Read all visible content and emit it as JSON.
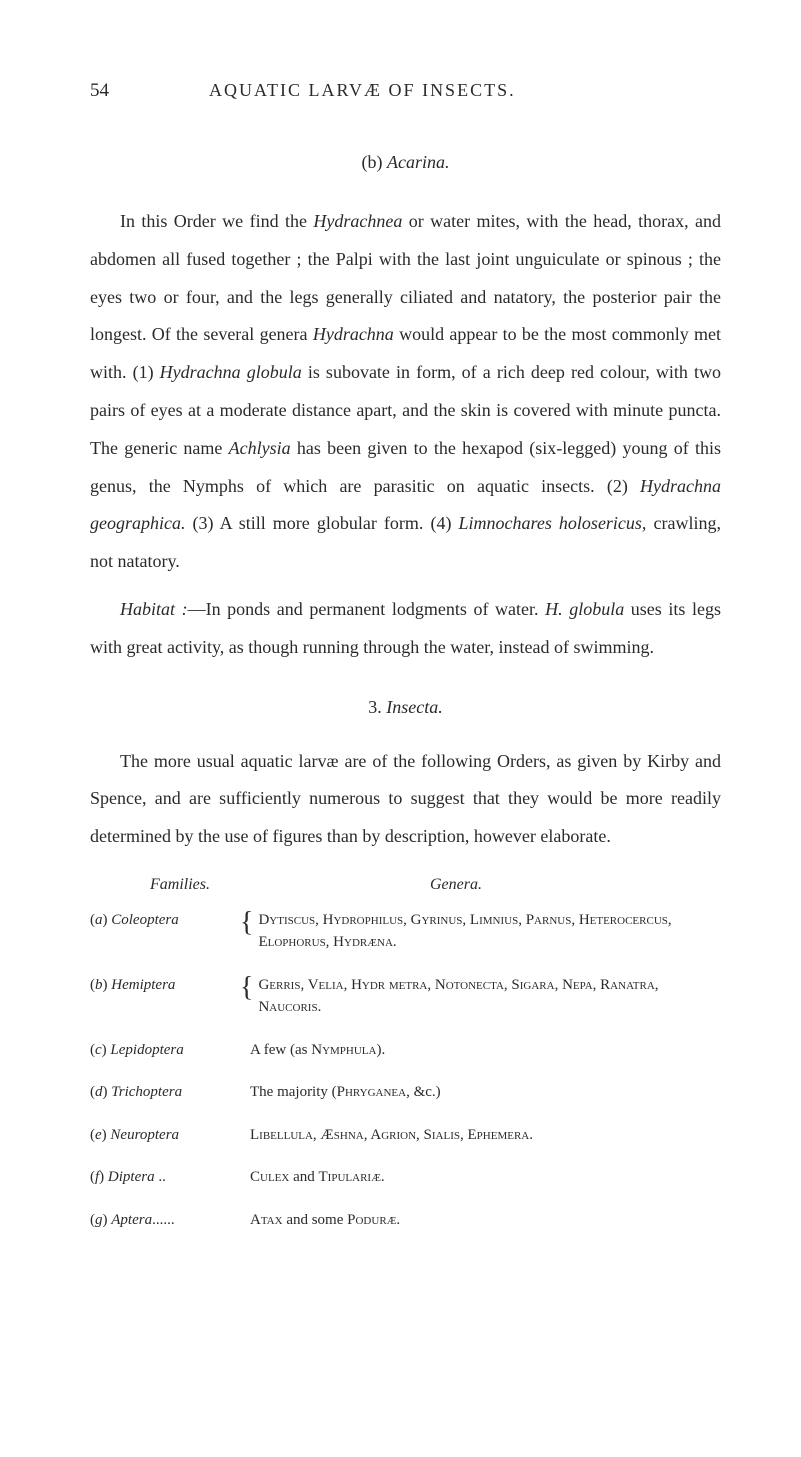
{
  "page_number": "54",
  "header_title": "AQUATIC LARVÆ OF INSECTS.",
  "section_b_label": "(b) Acarina.",
  "paragraph_1": "In this Order we find the Hydrachnea or water mites, with the head, thorax, and abdomen all fused together ; the Palpi with the last joint unguiculate or spinous ; the eyes two or four, and the legs generally ciliated and natatory, the posterior pair the longest. Of the several genera Hydrachna would appear to be the most commonly met with. (1) Hydrachna globula is subovate in form, of a rich deep red colour, with two pairs of eyes at a moderate distance apart, and the skin is covered with minute puncta. The generic name Achlysia has been given to the hexapod (six-legged) young of this genus, the Nymphs of which are parasitic on aquatic insects. (2) Hydrachna geographica. (3) A still more globular form. (4) Limnochares holosericus, crawling, not natatory.",
  "paragraph_2": "Habitat :—In ponds and permanent lodgments of water. H. globula uses its legs with great activity, as though running through the water, instead of swimming.",
  "section_3_label": "3. Insecta.",
  "paragraph_3": "The more usual aquatic larvæ are of the following Orders, as given by Kirby and Spence, and are sufficiently numerous to suggest that they would be more readily determined by the use of figures than by description, however elaborate.",
  "families_label": "Families.",
  "genera_label": "Genera.",
  "family_a_key": "(a)",
  "family_a_name": "Coleoptera",
  "family_a_genera": "Dytiscus, Hydrophilus, Gyrinus, Limnius, Parnus, Heterocercus, Elophorus, Hydræna.",
  "family_b_key": "(b)",
  "family_b_name": "Hemiptera",
  "family_b_genera": "Gerris, Velia, Hydr metra, Notonecta, Sigara, Nepa, Ranatra, Naucoris.",
  "family_c_key": "(c)",
  "family_c_name": "Lepidoptera",
  "family_c_genera": "A few (as Nymphula).",
  "family_d_key": "(d)",
  "family_d_name": "Trichoptera",
  "family_d_genera": "The majority (Phryganea, &c.)",
  "family_e_key": "(e)",
  "family_e_name": "Neuroptera",
  "family_e_genera": "Libellula, Æshna, Agrion, Sialis, Ephemera.",
  "family_f_key": "(f)",
  "family_f_name": "Diptera",
  "family_f_dots": "..",
  "family_f_genera": "Culex and Tipulariæ.",
  "family_g_key": "(g)",
  "family_g_name": "Aptera",
  "family_g_dots": "......",
  "family_g_genera": "Atax and some Poduræ."
}
